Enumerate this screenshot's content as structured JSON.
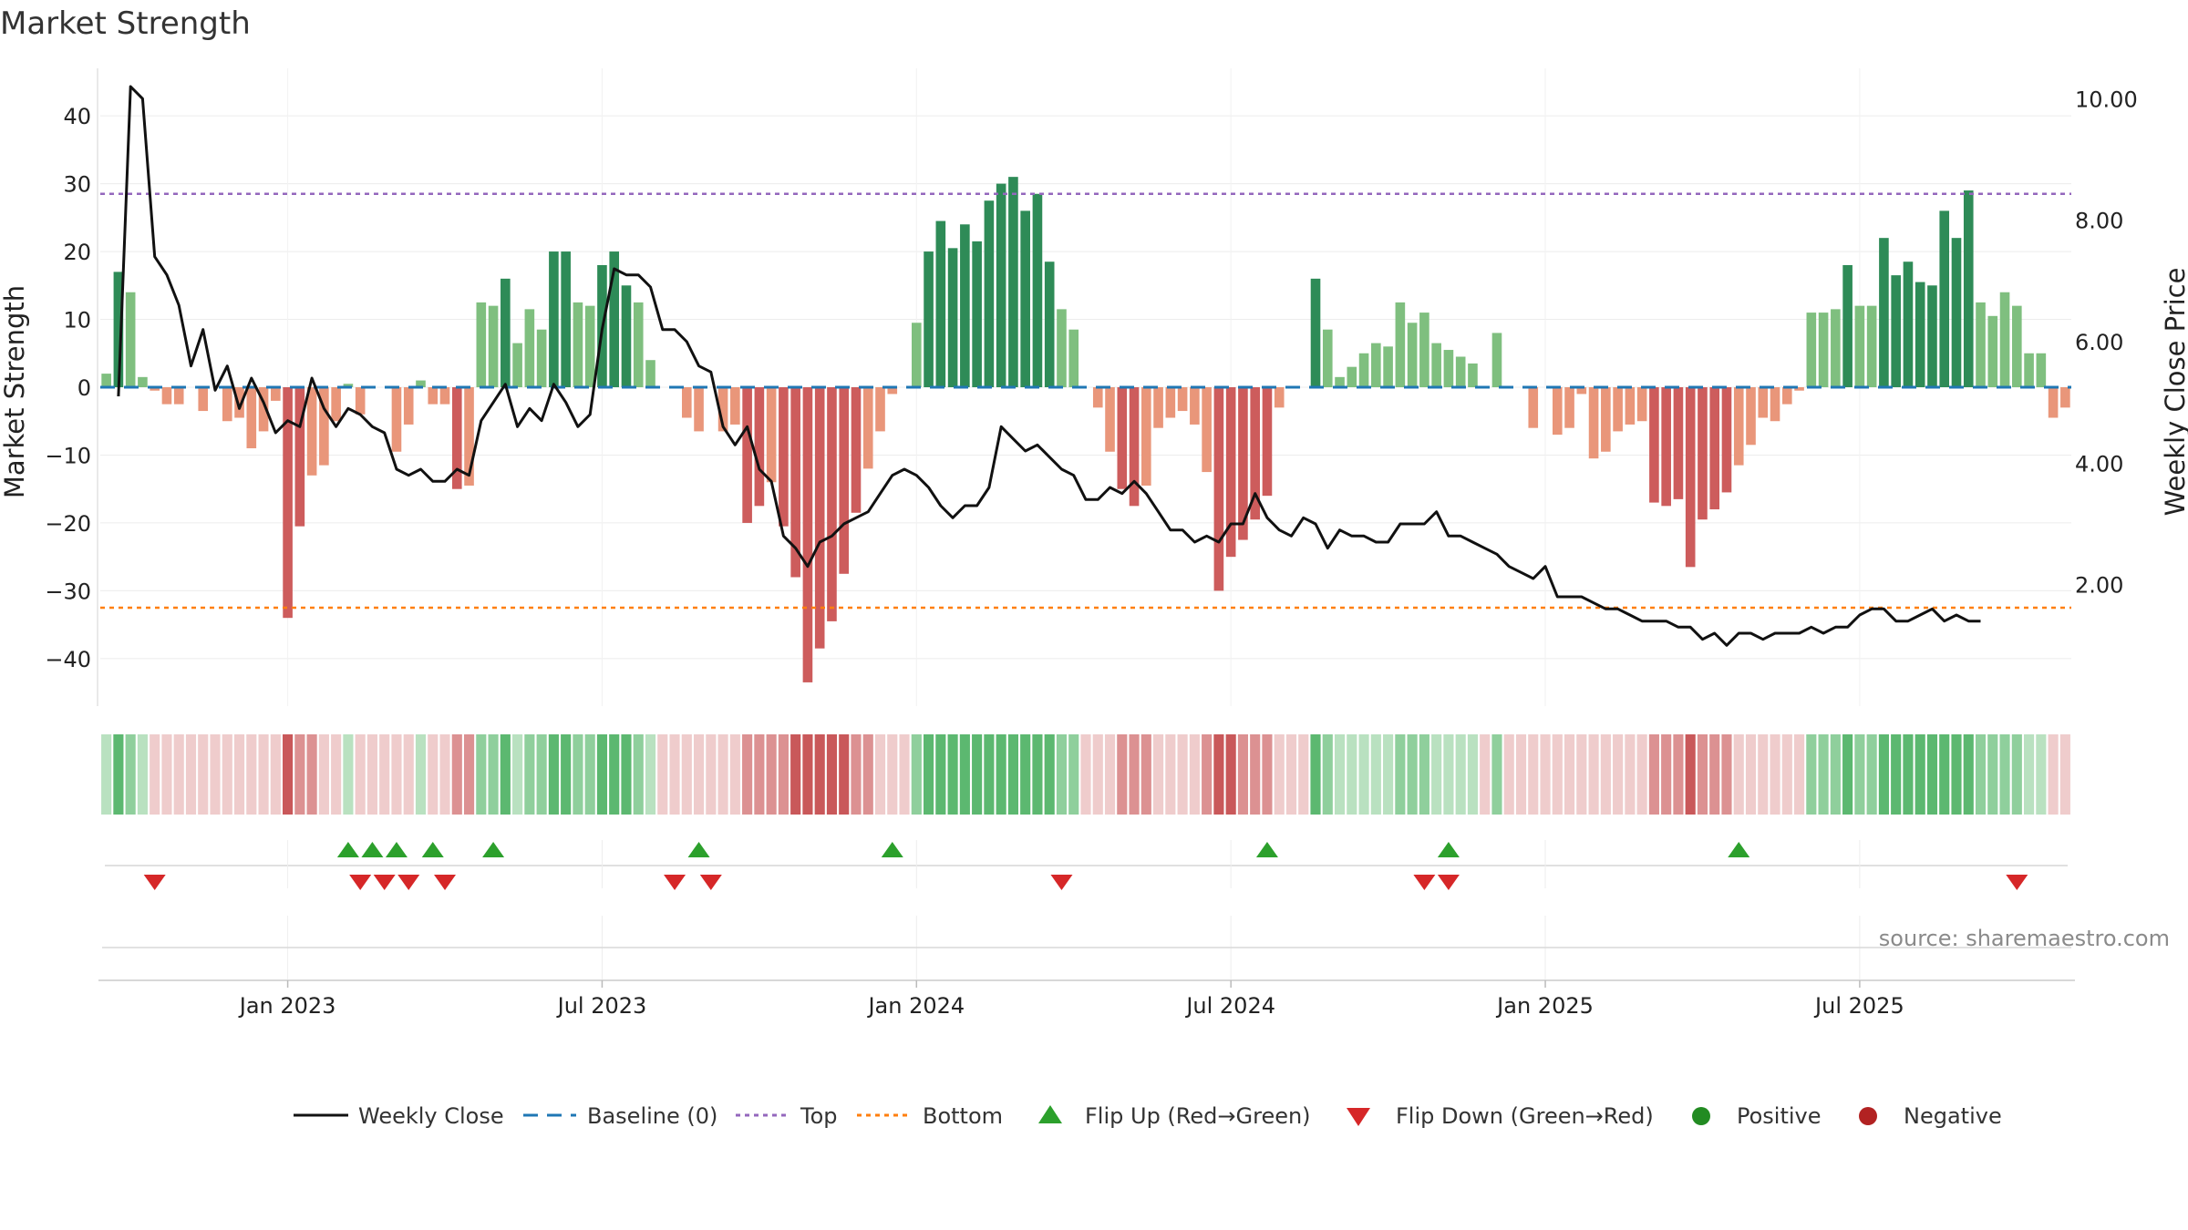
{
  "chart_data": {
    "type": "bar",
    "title": "Market Strength",
    "ylabel_left": "Market Strength",
    "ylabel_right": "Weekly Close Price",
    "source": "source: sharemaestro.com",
    "left_ylim": [
      -47,
      47
    ],
    "right_ylim": [
      0.0,
      10.5
    ],
    "left_ticks": [
      40,
      30,
      20,
      10,
      0,
      -10,
      -20,
      -30,
      -40
    ],
    "left_tick_labels": [
      "40",
      "30",
      "20",
      "10",
      "0",
      "−10",
      "−20",
      "−30",
      "−40"
    ],
    "right_ticks": [
      10,
      8,
      6,
      4,
      2
    ],
    "right_tick_labels": [
      "10.00",
      "8.00",
      "6.00",
      "4.00",
      "2.00"
    ],
    "x_labels": [
      {
        "label": "Jan 2023",
        "week": 30
      },
      {
        "label": "Jul 2023",
        "week": 56
      },
      {
        "label": "Jan 2024",
        "week": 82
      },
      {
        "label": "Jul 2024",
        "week": 108
      },
      {
        "label": "Jan 2025",
        "week": 134
      },
      {
        "label": "Jul 2025",
        "week": 160
      }
    ],
    "first_week": 15,
    "top_level": 28.5,
    "bottom_level": -32.5,
    "strength": [
      2,
      17,
      14,
      1.5,
      -0.5,
      -2.5,
      -2.5,
      0,
      -3.5,
      0,
      -5,
      -4.5,
      -9,
      -6.5,
      -2,
      -34,
      -20.5,
      -13,
      -11.5,
      -5,
      0.5,
      -4,
      0,
      0,
      -9.5,
      -5.5,
      1,
      -2.5,
      -2.5,
      -15,
      -14.5,
      12.5,
      12,
      16,
      6.5,
      11.5,
      8.5,
      20,
      20,
      12.5,
      12,
      18,
      20,
      15,
      12.5,
      4,
      0,
      0,
      -4.5,
      -6.5,
      0,
      -6.5,
      -5.5,
      -20,
      -17.5,
      -14,
      -20.5,
      -28,
      -43.5,
      -38.5,
      -34.5,
      -27.5,
      -18.5,
      -12,
      -6.5,
      -1,
      0,
      9.5,
      20,
      24.5,
      20.5,
      24,
      21.5,
      27.5,
      30,
      31,
      26,
      28.5,
      18.5,
      11.5,
      8.5,
      0,
      -3,
      -9.5,
      -15,
      -17.5,
      -14.5,
      -6,
      -4.5,
      -3.5,
      -5.5,
      -12.5,
      -30,
      -25,
      -22.5,
      -19.5,
      -16,
      -3,
      0,
      0,
      16,
      8.5,
      1.5,
      3,
      5,
      6.5,
      6,
      12.5,
      9.5,
      11,
      6.5,
      5.5,
      4.5,
      3.5,
      0,
      8,
      0,
      0,
      -6,
      0,
      -7,
      -6,
      -1,
      -10.5,
      -9.5,
      -6.5,
      -5.5,
      -5,
      -17,
      -17.5,
      -16.5,
      -26.5,
      -19.5,
      -18,
      -15.5,
      -11.5,
      -8.5,
      -4.5,
      -5,
      -2.5,
      -0.5,
      11,
      11,
      11.5,
      18,
      12,
      12,
      22,
      16.5,
      18.5,
      15.5,
      15,
      26,
      22,
      29,
      12.5,
      10.5,
      14,
      12,
      5,
      5,
      -4.5,
      -3
    ],
    "close": [
      null,
      5.1,
      10.2,
      10.0,
      7.4,
      7.1,
      6.6,
      5.6,
      6.2,
      5.2,
      5.6,
      4.9,
      5.4,
      5.0,
      4.5,
      4.7,
      4.6,
      5.4,
      4.9,
      4.6,
      4.9,
      4.8,
      4.6,
      4.5,
      3.9,
      3.8,
      3.9,
      3.7,
      3.7,
      3.9,
      3.8,
      4.7,
      5.0,
      5.3,
      4.6,
      4.9,
      4.7,
      5.3,
      5.0,
      4.6,
      4.8,
      6.2,
      7.2,
      7.1,
      7.1,
      6.9,
      6.2,
      6.2,
      6.0,
      5.6,
      5.5,
      4.6,
      4.3,
      4.6,
      3.9,
      3.7,
      2.8,
      2.6,
      2.3,
      2.7,
      2.8,
      3.0,
      3.1,
      3.2,
      3.5,
      3.8,
      3.9,
      3.8,
      3.6,
      3.3,
      3.1,
      3.3,
      3.3,
      3.6,
      4.6,
      4.4,
      4.2,
      4.3,
      4.1,
      3.9,
      3.8,
      3.4,
      3.4,
      3.6,
      3.5,
      3.7,
      3.5,
      3.2,
      2.9,
      2.9,
      2.7,
      2.8,
      2.7,
      3.0,
      3.0,
      3.5,
      3.1,
      2.9,
      2.8,
      3.1,
      3.0,
      2.6,
      2.9,
      2.8,
      2.8,
      2.7,
      2.7,
      3.0,
      3.0,
      3.0,
      3.2,
      2.8,
      2.8,
      2.7,
      2.6,
      2.5,
      2.3,
      2.2,
      2.1,
      2.3,
      1.8,
      1.8,
      1.8,
      1.7,
      1.6,
      1.6,
      1.5,
      1.4,
      1.4,
      1.4,
      1.3,
      1.3,
      1.1,
      1.2,
      1.0,
      1.2,
      1.2,
      1.1,
      1.2,
      1.2,
      1.2,
      1.3,
      1.2,
      1.3,
      1.3,
      1.5,
      1.6,
      1.6,
      1.4,
      1.4,
      1.5,
      1.6,
      1.4,
      1.5,
      1.4,
      1.4
    ],
    "flip_up_weeks": [
      35,
      37,
      39,
      42,
      47,
      64,
      80,
      111,
      126,
      150
    ],
    "flip_down_weeks": [
      19,
      36,
      38,
      40,
      43,
      62,
      65,
      94,
      124,
      126,
      173
    ],
    "colors": {
      "strong_green": "#2e8b57",
      "light_green": "#7fbf7f",
      "strong_red": "#cd5c5c",
      "light_red": "#e9967a",
      "line": "#111111",
      "baseline": "#1f77b4",
      "top": "#9467bd",
      "bottom": "#ff7f0e",
      "flip_up": "#2ca02c",
      "flip_down": "#d62728",
      "positive": "#228b22",
      "negative": "#b22222"
    },
    "legend": {
      "weekly_close": "Weekly Close",
      "baseline": "Baseline (0)",
      "top": "Top",
      "bottom": "Bottom",
      "flip_up": "Flip Up (Red→Green)",
      "flip_down": "Flip Down (Green→Red)",
      "positive": "Positive",
      "negative": "Negative"
    }
  }
}
